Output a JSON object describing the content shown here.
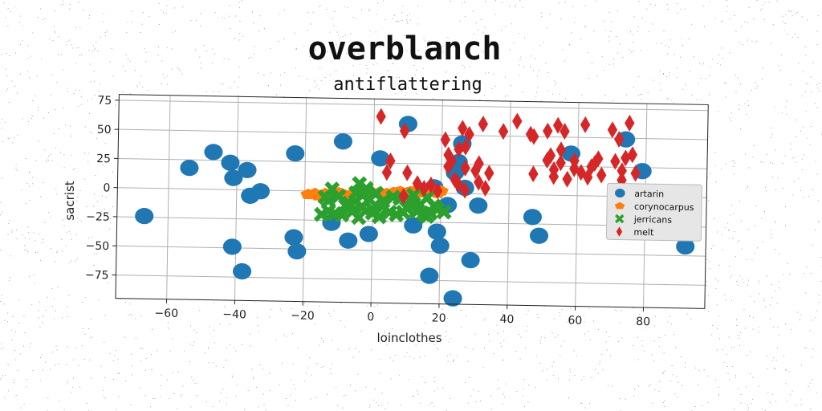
{
  "chart_data": {
    "type": "scatter",
    "title": "overblanch",
    "subtitle": "antiflattering",
    "xlabel": "loinclothes",
    "ylabel": "sacrist",
    "xlim": [
      -75,
      98
    ],
    "ylim": [
      -95,
      80
    ],
    "xticks": [
      -60,
      -40,
      -20,
      0,
      20,
      40,
      60,
      80
    ],
    "yticks": [
      75,
      50,
      25,
      0,
      -25,
      -50,
      -75
    ],
    "grid": true,
    "legend_position": "right",
    "series": [
      {
        "name": "artarin",
        "color": "#1f77b4",
        "marker": "circle",
        "points": [
          [
            -67,
            -24
          ],
          [
            -54,
            18
          ],
          [
            -47,
            32
          ],
          [
            -42,
            23
          ],
          [
            -41,
            10
          ],
          [
            -37,
            17
          ],
          [
            -36,
            -5
          ],
          [
            -33,
            -1
          ],
          [
            -41,
            -49
          ],
          [
            -38,
            -70
          ],
          [
            -23,
            -40
          ],
          [
            -22,
            -52
          ],
          [
            -23,
            32
          ],
          [
            -9,
            43
          ],
          [
            -12,
            -27
          ],
          [
            -7,
            -42
          ],
          [
            -1,
            -36
          ],
          [
            2,
            29
          ],
          [
            10,
            59
          ],
          [
            12,
            -28
          ],
          [
            18,
            5
          ],
          [
            19,
            -33
          ],
          [
            20,
            -45
          ],
          [
            17,
            -71
          ],
          [
            22,
            -10
          ],
          [
            24,
            -90
          ],
          [
            24,
            18
          ],
          [
            25,
            27
          ],
          [
            26,
            43
          ],
          [
            27,
            5
          ],
          [
            29,
            -57
          ],
          [
            31,
            -10
          ],
          [
            47,
            -19
          ],
          [
            49,
            -35
          ],
          [
            58,
            36
          ],
          [
            74,
            49
          ],
          [
            79,
            22
          ],
          [
            92,
            -42
          ]
        ]
      },
      {
        "name": "corynocarpus",
        "color": "#ff7f0e",
        "marker": "pentagon",
        "points": [
          [
            -19,
            -3
          ],
          [
            -16,
            -4
          ],
          [
            -14,
            -2
          ],
          [
            -12,
            -3
          ],
          [
            -10,
            -1
          ],
          [
            -8,
            -3
          ],
          [
            -6,
            -2
          ],
          [
            -4,
            -1
          ],
          [
            -2,
            -2
          ],
          [
            0,
            -1
          ],
          [
            2,
            0
          ],
          [
            4,
            -1
          ],
          [
            6,
            0
          ],
          [
            8,
            1
          ],
          [
            10,
            0
          ],
          [
            12,
            1
          ],
          [
            14,
            0
          ],
          [
            16,
            2
          ],
          [
            18,
            1
          ],
          [
            20,
            2
          ],
          [
            -17,
            -2
          ],
          [
            -13,
            -4
          ],
          [
            -9,
            -2
          ],
          [
            -5,
            -3
          ],
          [
            -1,
            -1
          ],
          [
            3,
            -2
          ],
          [
            7,
            0
          ],
          [
            11,
            1
          ],
          [
            15,
            1
          ],
          [
            19,
            0
          ]
        ]
      },
      {
        "name": "jerricans",
        "color": "#2ca02c",
        "marker": "x",
        "points": [
          [
            -15,
            -20
          ],
          [
            -13,
            -8
          ],
          [
            -13,
            -17
          ],
          [
            -12,
            2
          ],
          [
            -10,
            -4
          ],
          [
            -9,
            -20
          ],
          [
            -8,
            -12
          ],
          [
            -6,
            -17
          ],
          [
            -5,
            -1
          ],
          [
            -5,
            -8
          ],
          [
            -4,
            -22
          ],
          [
            -3,
            -13
          ],
          [
            -2,
            3
          ],
          [
            -1,
            -6
          ],
          [
            0,
            -15
          ],
          [
            1,
            -1
          ],
          [
            2,
            -21
          ],
          [
            3,
            -8
          ],
          [
            3,
            -12
          ],
          [
            5,
            -17
          ],
          [
            6,
            -4
          ],
          [
            -4,
            7
          ],
          [
            7,
            -19
          ],
          [
            8,
            -5
          ],
          [
            10,
            -13
          ],
          [
            11,
            -6
          ],
          [
            12,
            -2
          ],
          [
            13,
            -16
          ],
          [
            14,
            -10
          ],
          [
            15,
            -18
          ],
          [
            16,
            -4
          ],
          [
            17,
            -17
          ],
          [
            18,
            -11
          ],
          [
            19,
            -14
          ],
          [
            21,
            -16
          ],
          [
            -11,
            -19
          ],
          [
            -7,
            -10
          ],
          [
            0,
            -18
          ],
          [
            9,
            -17
          ],
          [
            16,
            -20
          ],
          [
            -14,
            -5
          ],
          [
            -3,
            -3
          ]
        ]
      },
      {
        "name": "melt",
        "color": "#d62728",
        "marker": "diamond",
        "points": [
          [
            2,
            65
          ],
          [
            9,
            53
          ],
          [
            5,
            27
          ],
          [
            4,
            17
          ],
          [
            9,
            -3
          ],
          [
            10,
            17
          ],
          [
            13,
            8
          ],
          [
            15,
            4
          ],
          [
            17,
            7
          ],
          [
            19,
            2
          ],
          [
            21,
            46
          ],
          [
            22,
            33
          ],
          [
            22,
            23
          ],
          [
            23,
            28
          ],
          [
            24,
            12
          ],
          [
            25,
            8
          ],
          [
            25,
            38
          ],
          [
            26,
            56
          ],
          [
            27,
            3
          ],
          [
            27,
            40
          ],
          [
            27,
            22
          ],
          [
            28,
            51
          ],
          [
            30,
            20
          ],
          [
            31,
            26
          ],
          [
            31,
            10
          ],
          [
            32,
            60
          ],
          [
            33,
            5
          ],
          [
            34,
            18
          ],
          [
            38,
            54
          ],
          [
            42,
            63
          ],
          [
            46,
            52
          ],
          [
            47,
            50
          ],
          [
            47,
            18
          ],
          [
            51,
            55
          ],
          [
            51,
            30
          ],
          [
            52,
            34
          ],
          [
            53,
            22
          ],
          [
            53,
            16
          ],
          [
            54,
            60
          ],
          [
            55,
            39
          ],
          [
            55,
            28
          ],
          [
            56,
            55
          ],
          [
            57,
            14
          ],
          [
            59,
            30
          ],
          [
            59,
            23
          ],
          [
            61,
            20
          ],
          [
            62,
            61
          ],
          [
            63,
            16
          ],
          [
            64,
            25
          ],
          [
            65,
            28
          ],
          [
            66,
            32
          ],
          [
            67,
            18
          ],
          [
            70,
            57
          ],
          [
            71,
            30
          ],
          [
            72,
            49
          ],
          [
            73,
            22
          ],
          [
            73,
            14
          ],
          [
            74,
            33
          ],
          [
            75,
            63
          ],
          [
            76,
            36
          ],
          [
            77,
            20
          ]
        ]
      }
    ]
  }
}
